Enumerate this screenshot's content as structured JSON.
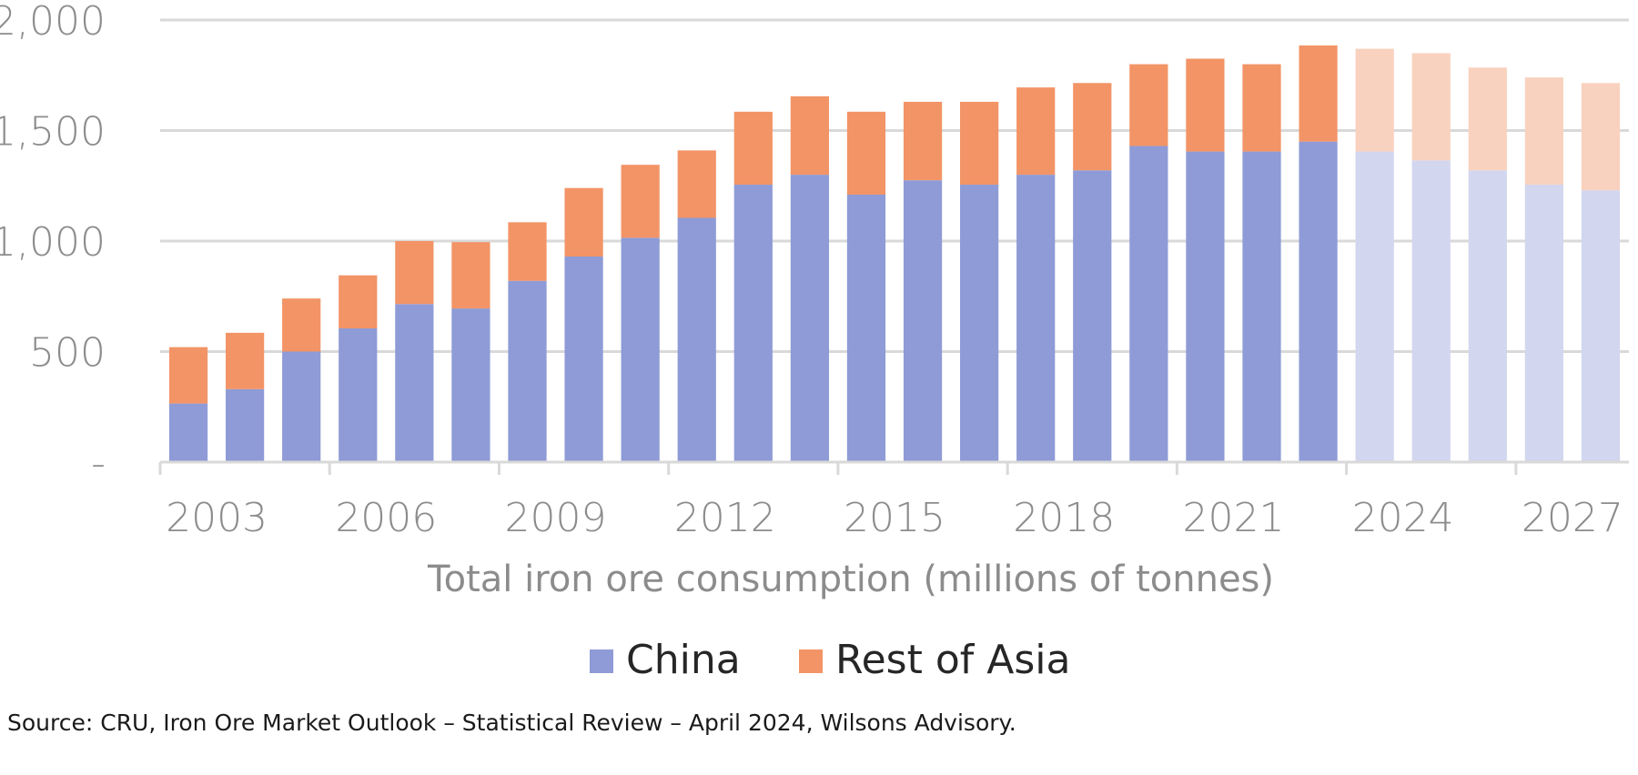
{
  "chart_data": {
    "type": "stacked-bar",
    "title": "",
    "xlabel": "Total iron ore consumption (millions of tonnes)",
    "ylabel": "",
    "ylim": [
      0,
      2000
    ],
    "yticks": [
      {
        "value": 0,
        "label": "-"
      },
      {
        "value": 500,
        "label": "500"
      },
      {
        "value": 1000,
        "label": "1,000"
      },
      {
        "value": 1500,
        "label": "1,500"
      },
      {
        "value": 2000,
        "label": "2,000"
      }
    ],
    "grid": true,
    "categories": [
      "2003",
      "2004",
      "2005",
      "2006",
      "2007",
      "2008",
      "2009",
      "2010",
      "2011",
      "2012",
      "2013",
      "2014",
      "2015",
      "2016",
      "2017",
      "2018",
      "2019",
      "2020",
      "2021",
      "2022",
      "2023",
      "2024",
      "2025",
      "2026",
      "2027",
      "2028"
    ],
    "xtick_labels": [
      "2003",
      "2006",
      "2009",
      "2012",
      "2015",
      "2018",
      "2021",
      "2024",
      "2027"
    ],
    "forecast_from": "2024",
    "series": [
      {
        "name": "China",
        "color": "#8e9bd6",
        "forecast_color": "#d2d6ee",
        "values": [
          265,
          330,
          500,
          605,
          715,
          695,
          820,
          930,
          1015,
          1105,
          1255,
          1300,
          1210,
          1275,
          1255,
          1300,
          1320,
          1430,
          1405,
          1405,
          1450,
          1405,
          1365,
          1320,
          1255,
          1230
        ]
      },
      {
        "name": "Rest of Asia",
        "color": "#f29466",
        "forecast_color": "#f9d2bf",
        "values": [
          255,
          255,
          240,
          240,
          285,
          300,
          265,
          310,
          330,
          305,
          330,
          355,
          375,
          355,
          375,
          395,
          395,
          370,
          420,
          395,
          435,
          465,
          485,
          465,
          485,
          485
        ]
      }
    ],
    "legend_position": "bottom-center"
  },
  "source": "Source: CRU, Iron Ore Market Outlook – Statistical Review – April 2024, Wilsons Advisory."
}
